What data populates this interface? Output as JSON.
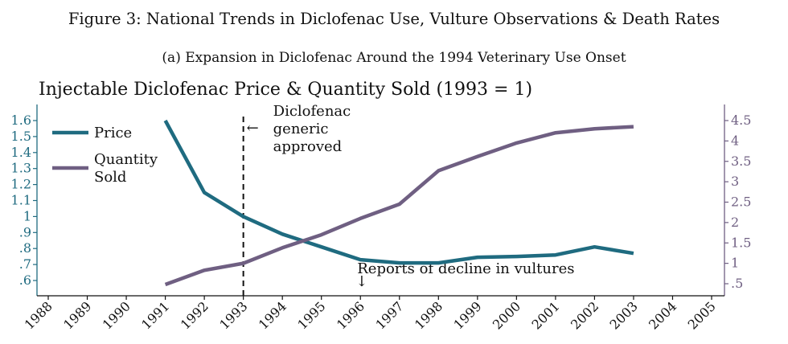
{
  "figure": {
    "title": "Figure 3: National Trends in Diclofenac Use, Vulture Observations & Death Rates",
    "subtitle": "(a) Expansion in Diclofenac Around the 1994 Veterinary Use Onset"
  },
  "chart_data": {
    "type": "line",
    "title": "Injectable Diclofenac Price & Quantity Sold (1993 = 1)",
    "xlabel": "",
    "ylabel": "",
    "x_ticks": [
      "1988",
      "1989",
      "1990",
      "1991",
      "1992",
      "1993",
      "1994",
      "1995",
      "1996",
      "1997",
      "1998",
      "1999",
      "2000",
      "2001",
      "2002",
      "2003",
      "2004",
      "2005"
    ],
    "xlim": [
      1988,
      2005
    ],
    "y_left": {
      "ticks": [
        ".6",
        ".7",
        ".8",
        ".9",
        "1",
        "1.1",
        "1.2",
        "1.3",
        "1.4",
        "1.5",
        "1.6"
      ],
      "ylim": [
        0.55,
        1.65
      ],
      "color": "#1f6b80"
    },
    "y_right": {
      "ticks": [
        ".5",
        "1",
        "1.5",
        "2",
        "2.5",
        "3",
        "3.5",
        "4",
        "4.5"
      ],
      "ylim": [
        0.3,
        4.55
      ],
      "color": "#6f5f82"
    },
    "grid": false,
    "legend_position": "top-left",
    "series": [
      {
        "name": "Price",
        "axis": "left",
        "color": "#1f6b80",
        "x": [
          1991,
          1992,
          1993,
          1994,
          1995,
          1996,
          1997,
          1998,
          1999,
          2000,
          2001,
          2002,
          2003
        ],
        "y": [
          1.6,
          1.15,
          1.0,
          0.89,
          0.81,
          0.73,
          0.71,
          0.71,
          0.745,
          0.75,
          0.76,
          0.81,
          0.77
        ]
      },
      {
        "name": "Quantity Sold",
        "legend_lines": [
          "Quantity",
          "Sold"
        ],
        "axis": "right",
        "color": "#6f5f82",
        "x": [
          1991,
          1992,
          1993,
          1994,
          1995,
          1996,
          1997,
          1998,
          1999,
          2000,
          2001,
          2002,
          2003
        ],
        "y": [
          0.48,
          0.83,
          1.0,
          1.38,
          1.7,
          2.1,
          2.45,
          3.27,
          3.62,
          3.95,
          4.2,
          4.3,
          4.35
        ]
      }
    ],
    "annotations": {
      "vline_year": 1993,
      "generic_label": [
        "Diclofenac",
        "generic",
        "approved"
      ],
      "arrow_left": "←",
      "arrow_down": "↓",
      "decline_label": "Reports of decline in vultures",
      "decline_year": 1996
    }
  }
}
